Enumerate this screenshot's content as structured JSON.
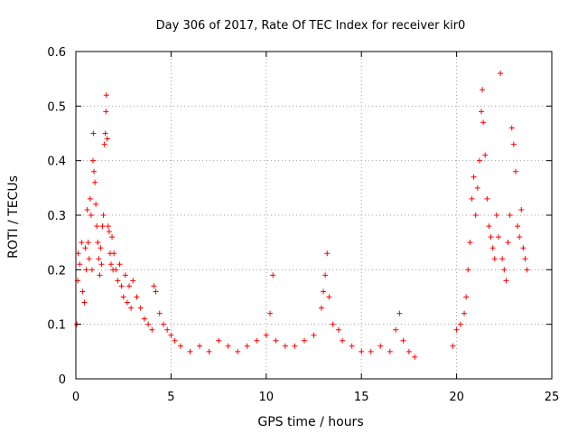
{
  "chart_data": {
    "type": "scatter",
    "title": "Day 306 of 2017, Rate Of TEC Index for receiver kir0",
    "xlabel": "GPS time / hours",
    "ylabel": "ROTI / TECUs",
    "xlim": [
      0,
      25
    ],
    "ylim": [
      0,
      0.6
    ],
    "x_ticks": [
      "0",
      "5",
      "10",
      "15",
      "20",
      "25"
    ],
    "y_ticks": [
      "0",
      "0.1",
      "0.2",
      "0.3",
      "0.4",
      "0.5",
      "0.6"
    ],
    "grid": true,
    "marker": "plus",
    "color": "#ff0000",
    "series": [
      {
        "points": [
          [
            0.05,
            0.1
          ],
          [
            0.1,
            0.18
          ],
          [
            0.12,
            0.23
          ],
          [
            0.2,
            0.21
          ],
          [
            0.3,
            0.25
          ],
          [
            0.35,
            0.16
          ],
          [
            0.45,
            0.14
          ],
          [
            0.5,
            0.24
          ],
          [
            0.55,
            0.2
          ],
          [
            0.6,
            0.31
          ],
          [
            0.65,
            0.25
          ],
          [
            0.7,
            0.22
          ],
          [
            0.75,
            0.33
          ],
          [
            0.8,
            0.3
          ],
          [
            0.85,
            0.2
          ],
          [
            0.9,
            0.4
          ],
          [
            0.92,
            0.45
          ],
          [
            0.95,
            0.38
          ],
          [
            1.0,
            0.36
          ],
          [
            1.05,
            0.32
          ],
          [
            1.1,
            0.28
          ],
          [
            1.15,
            0.25
          ],
          [
            1.2,
            0.22
          ],
          [
            1.25,
            0.19
          ],
          [
            1.3,
            0.24
          ],
          [
            1.35,
            0.21
          ],
          [
            1.4,
            0.28
          ],
          [
            1.45,
            0.3
          ],
          [
            1.5,
            0.43
          ],
          [
            1.55,
            0.45
          ],
          [
            1.58,
            0.49
          ],
          [
            1.6,
            0.52
          ],
          [
            1.65,
            0.44
          ],
          [
            1.7,
            0.28
          ],
          [
            1.75,
            0.27
          ],
          [
            1.8,
            0.23
          ],
          [
            1.85,
            0.21
          ],
          [
            1.9,
            0.26
          ],
          [
            1.95,
            0.2
          ],
          [
            2.0,
            0.23
          ],
          [
            2.1,
            0.2
          ],
          [
            2.2,
            0.18
          ],
          [
            2.3,
            0.21
          ],
          [
            2.4,
            0.17
          ],
          [
            2.5,
            0.15
          ],
          [
            2.6,
            0.19
          ],
          [
            2.7,
            0.14
          ],
          [
            2.8,
            0.17
          ],
          [
            2.9,
            0.13
          ],
          [
            3.0,
            0.18
          ],
          [
            3.2,
            0.15
          ],
          [
            3.4,
            0.13
          ],
          [
            3.6,
            0.11
          ],
          [
            3.8,
            0.1
          ],
          [
            4.0,
            0.09
          ],
          [
            4.1,
            0.17
          ],
          [
            4.2,
            0.16
          ],
          [
            4.4,
            0.12
          ],
          [
            4.6,
            0.1
          ],
          [
            4.8,
            0.09
          ],
          [
            5.0,
            0.08
          ],
          [
            5.2,
            0.07
          ],
          [
            5.5,
            0.06
          ],
          [
            6.0,
            0.05
          ],
          [
            6.5,
            0.06
          ],
          [
            7.0,
            0.05
          ],
          [
            7.5,
            0.07
          ],
          [
            8.0,
            0.06
          ],
          [
            8.5,
            0.05
          ],
          [
            9.0,
            0.06
          ],
          [
            9.5,
            0.07
          ],
          [
            10.0,
            0.08
          ],
          [
            10.2,
            0.12
          ],
          [
            10.35,
            0.19
          ],
          [
            10.5,
            0.07
          ],
          [
            11.0,
            0.06
          ],
          [
            11.5,
            0.06
          ],
          [
            12.0,
            0.07
          ],
          [
            12.5,
            0.08
          ],
          [
            12.9,
            0.13
          ],
          [
            13.0,
            0.16
          ],
          [
            13.1,
            0.19
          ],
          [
            13.2,
            0.23
          ],
          [
            13.3,
            0.15
          ],
          [
            13.5,
            0.1
          ],
          [
            13.8,
            0.09
          ],
          [
            14.0,
            0.07
          ],
          [
            14.5,
            0.06
          ],
          [
            15.0,
            0.05
          ],
          [
            15.5,
            0.05
          ],
          [
            16.0,
            0.06
          ],
          [
            16.5,
            0.05
          ],
          [
            16.8,
            0.09
          ],
          [
            17.0,
            0.12
          ],
          [
            17.2,
            0.07
          ],
          [
            17.5,
            0.05
          ],
          [
            17.8,
            0.04
          ],
          [
            19.8,
            0.06
          ],
          [
            20.0,
            0.09
          ],
          [
            20.2,
            0.1
          ],
          [
            20.4,
            0.12
          ],
          [
            20.5,
            0.15
          ],
          [
            20.6,
            0.2
          ],
          [
            20.7,
            0.25
          ],
          [
            20.8,
            0.33
          ],
          [
            20.9,
            0.37
          ],
          [
            21.0,
            0.3
          ],
          [
            21.1,
            0.35
          ],
          [
            21.2,
            0.4
          ],
          [
            21.3,
            0.49
          ],
          [
            21.35,
            0.53
          ],
          [
            21.4,
            0.47
          ],
          [
            21.5,
            0.41
          ],
          [
            21.6,
            0.33
          ],
          [
            21.7,
            0.28
          ],
          [
            21.8,
            0.26
          ],
          [
            21.9,
            0.24
          ],
          [
            22.0,
            0.22
          ],
          [
            22.1,
            0.3
          ],
          [
            22.2,
            0.26
          ],
          [
            22.3,
            0.56
          ],
          [
            22.4,
            0.22
          ],
          [
            22.5,
            0.2
          ],
          [
            22.6,
            0.18
          ],
          [
            22.7,
            0.25
          ],
          [
            22.8,
            0.3
          ],
          [
            22.9,
            0.46
          ],
          [
            23.0,
            0.43
          ],
          [
            23.1,
            0.38
          ],
          [
            23.2,
            0.28
          ],
          [
            23.3,
            0.26
          ],
          [
            23.4,
            0.31
          ],
          [
            23.5,
            0.24
          ],
          [
            23.6,
            0.22
          ],
          [
            23.7,
            0.2
          ]
        ]
      }
    ]
  }
}
